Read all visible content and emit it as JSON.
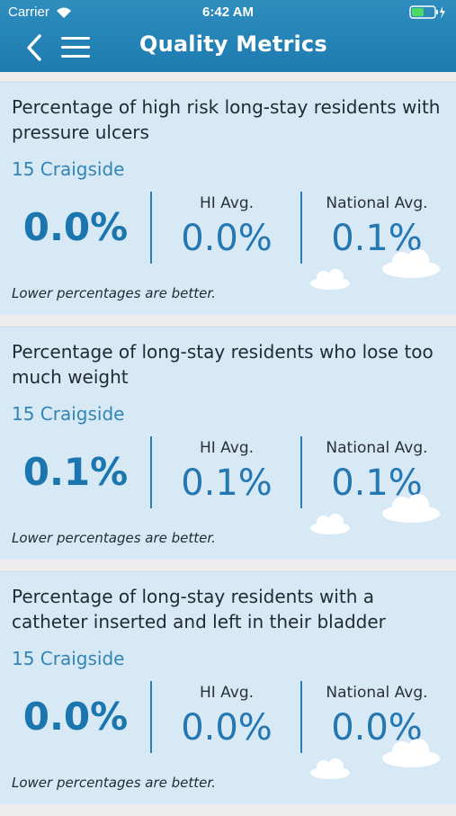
{
  "status_bar": {
    "carrier": "Carrier",
    "time": "6:42 AM"
  },
  "header": {
    "title": "Quality Metrics"
  },
  "colors": {
    "accent": "#1d7bb0",
    "card_bg": "#d8e9f6",
    "value": "#1b75ae"
  },
  "metrics": [
    {
      "title": "Percentage of high risk long-stay residents with pressure ulcers",
      "facility": "15 Craigside",
      "value": "0.0%",
      "hi_label": "HI Avg.",
      "hi_value": "0.0%",
      "national_label": "National Avg.",
      "national_value": "0.1%",
      "note": "Lower percentages are better."
    },
    {
      "title": "Percentage of long-stay residents who lose too much weight",
      "facility": "15 Craigside",
      "value": "0.1%",
      "hi_label": "HI Avg.",
      "hi_value": "0.1%",
      "national_label": "National Avg.",
      "national_value": "0.1%",
      "note": "Lower percentages are better."
    },
    {
      "title": "Percentage of long-stay residents with a catheter inserted and left in their bladder",
      "facility": "15 Craigside",
      "value": "0.0%",
      "hi_label": "HI Avg.",
      "hi_value": "0.0%",
      "national_label": "National Avg.",
      "national_value": "0.0%",
      "note": "Lower percentages are better."
    }
  ]
}
